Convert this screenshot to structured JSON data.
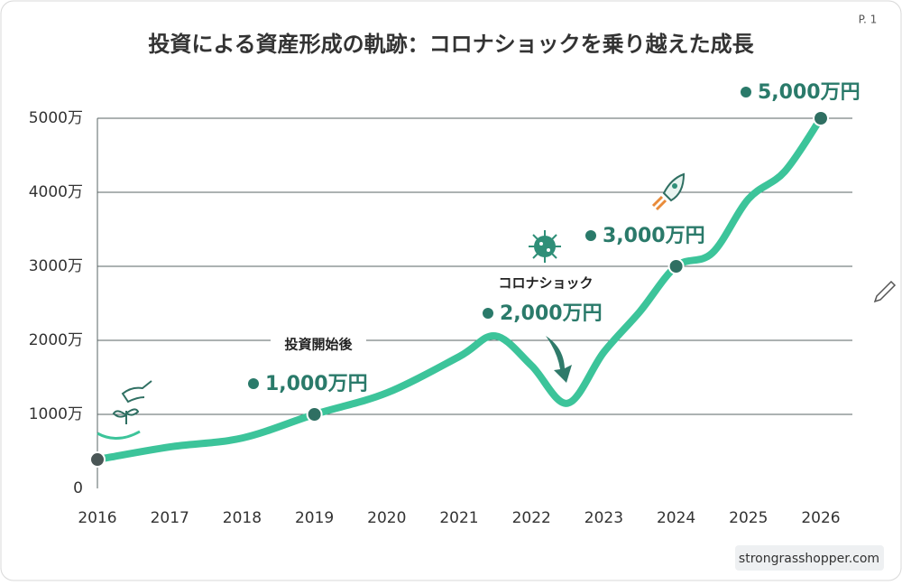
{
  "chart_data": {
    "type": "line",
    "title": "投資による資産形成の軌跡：コロナショックを乗り越えた成長",
    "page_label": "P. 1",
    "source": "strongrasshopper.com",
    "annotations": [
      "投資開始後",
      "1,000万円",
      "コロナショック",
      "2,000万円",
      "3,000万円",
      "5,000万円"
    ],
    "x": [
      2016,
      2017,
      2018,
      2019,
      2020,
      2021,
      2021.5,
      2022,
      2022.5,
      2023,
      2023.5,
      2024,
      2024.5,
      2025,
      2025.5,
      2026
    ],
    "series": [
      {
        "color": "#3cc49a",
        "values": [
          390,
          560,
          680,
          1000,
          1290,
          1780,
          2060,
          1660,
          1150,
          1840,
          2390,
          3000,
          3180,
          3910,
          4280,
          5000
        ]
      }
    ],
    "markers_x": [
      2016,
      2019,
      2024,
      2026
    ],
    "xlim": [
      2016,
      2026
    ],
    "xticks": [
      2016,
      2017,
      2018,
      2019,
      2020,
      2021,
      2022,
      2023,
      2024,
      2025,
      2026
    ],
    "ylim": [
      0,
      5000
    ],
    "yticks": [
      0,
      {
        "value": 1000,
        "label": "1000万"
      },
      {
        "value": 2000,
        "label": "2000万"
      },
      {
        "value": 3000,
        "label": "3000万"
      },
      {
        "value": 4000,
        "label": "4000万"
      },
      {
        "value": 5000,
        "label": "5000万"
      }
    ],
    "grid": true
  }
}
